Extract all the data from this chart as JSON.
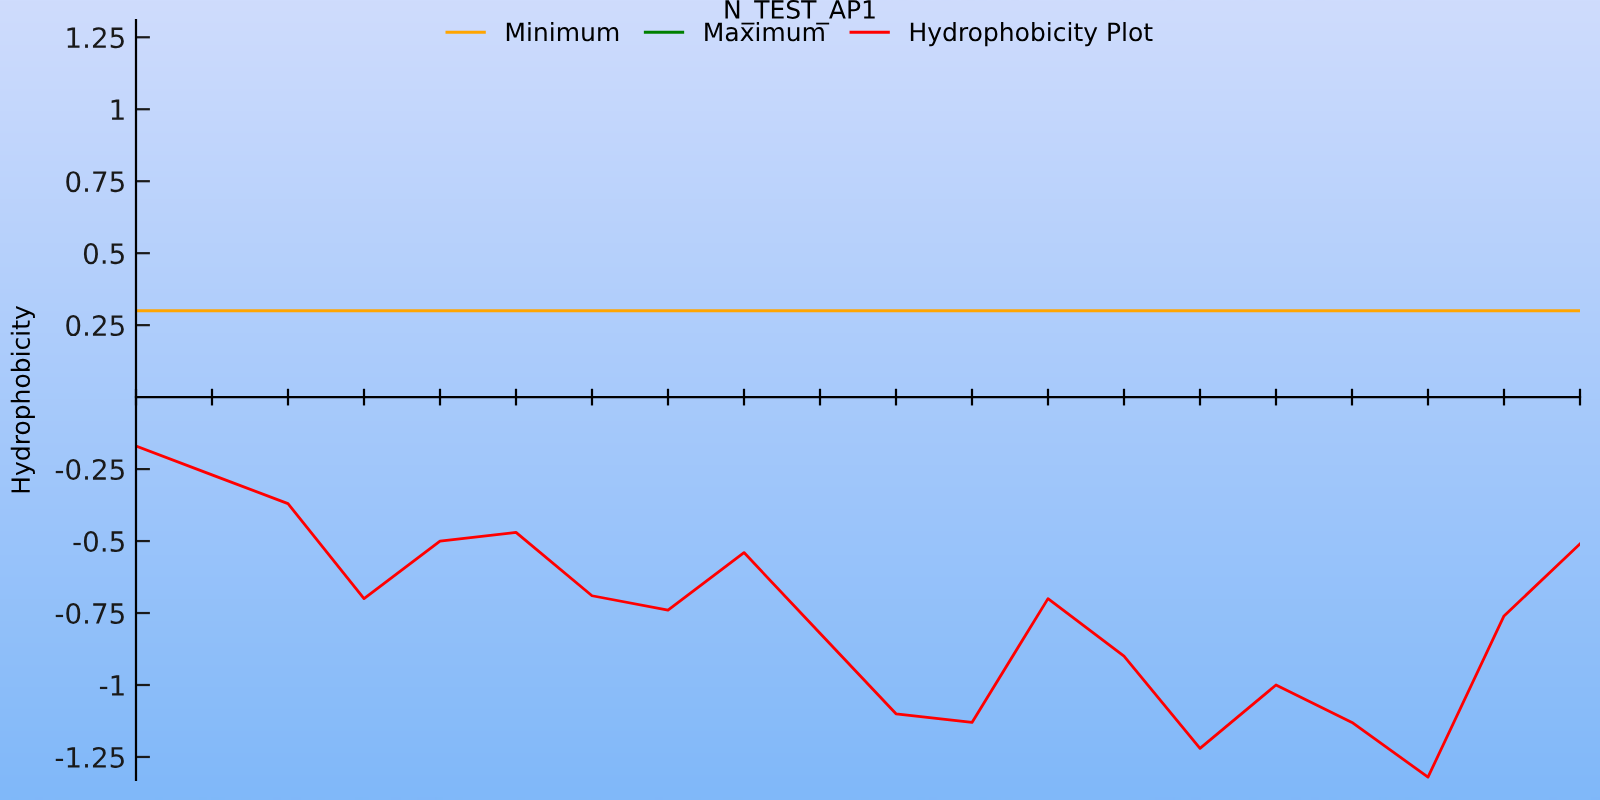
{
  "chart_data": {
    "type": "line",
    "title": "N_TEST_AP1",
    "ylabel": "Hydrophobicity",
    "categories": [
      null,
      null,
      null,
      null,
      null,
      null,
      null,
      null,
      null,
      null,
      null,
      null,
      null,
      null,
      null,
      null,
      null,
      null,
      null,
      null
    ],
    "series": [
      {
        "name": "Minimum",
        "color": "#ffa500",
        "values": [
          0.3,
          0.3,
          0.3,
          0.3,
          0.3,
          0.3,
          0.3,
          0.3,
          0.3,
          0.3,
          0.3,
          0.3,
          0.3,
          0.3,
          0.3,
          0.3,
          0.3,
          0.3,
          0.3,
          0.3
        ]
      },
      {
        "name": "Maximum",
        "color": "#008000",
        "values": [
          null,
          null,
          null,
          null,
          null,
          null,
          null,
          null,
          null,
          null,
          null,
          null,
          null,
          null,
          null,
          null,
          null,
          null,
          null,
          null
        ]
      },
      {
        "name": "Hydrophobicity Plot",
        "color": "#ff0000",
        "values": [
          -0.17,
          -0.27,
          -0.37,
          -0.7,
          -0.5,
          -0.47,
          -0.69,
          -0.74,
          -0.54,
          -0.82,
          -1.1,
          -1.13,
          -0.7,
          -0.9,
          -1.22,
          -1.0,
          -1.13,
          -1.32,
          -0.76,
          -0.51
        ]
      }
    ],
    "ylim": [
      -1.33,
      1.31
    ],
    "yticks": [
      -1.25,
      -1,
      -0.75,
      -0.5,
      -0.25,
      0.25,
      0.5,
      0.75,
      1,
      1.25
    ],
    "tick_labels": "y",
    "legend": "top",
    "grid": false,
    "marker": "none",
    "line_style": "solid"
  }
}
